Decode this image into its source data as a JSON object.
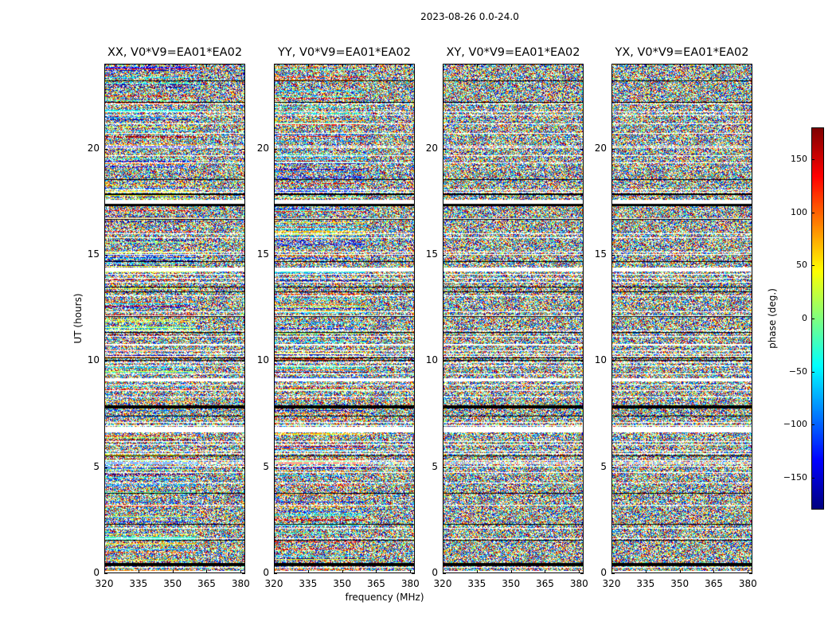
{
  "page": {
    "title": "2023-08-26 0.0-24.0"
  },
  "colors": {
    "text": "#000000",
    "background": "#ffffff",
    "colormap": "jet"
  },
  "chart_data": {
    "type": "heatmap",
    "title": "2023-08-26 0.0-24.0",
    "xlabel": "frequency (MHz)",
    "ylabel": "UT (hours)",
    "xlim": [
      320,
      382
    ],
    "ylim": [
      0,
      24
    ],
    "xticks": [
      "320",
      "335",
      "350",
      "365",
      "380"
    ],
    "yticks": [
      "0",
      "5",
      "10",
      "15",
      "20"
    ],
    "xtick_values": [
      320,
      335,
      350,
      365,
      380
    ],
    "ytick_values": [
      0,
      5,
      10,
      15,
      20
    ],
    "panels": [
      {
        "title": "XX, V0*V9=EA01*EA02",
        "polarization": "XX"
      },
      {
        "title": "YY, V0*V9=EA01*EA02",
        "polarization": "YY"
      },
      {
        "title": "XY, V0*V9=EA01*EA02",
        "polarization": "XY"
      },
      {
        "title": "YX, V0*V9=EA01*EA02",
        "polarization": "YX"
      }
    ],
    "colorbar": {
      "label": "phase (deg.)",
      "range": [
        -180,
        180
      ],
      "ticks": [
        "150",
        "100",
        "50",
        "0",
        "−50",
        "−100",
        "−150"
      ],
      "tick_values": [
        150,
        100,
        50,
        0,
        -50,
        -100,
        -150
      ],
      "colormap": "jet"
    }
  }
}
